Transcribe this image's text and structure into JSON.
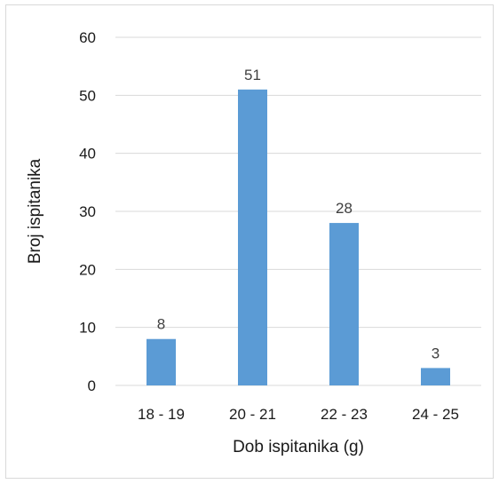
{
  "chart_data": {
    "type": "bar",
    "categories": [
      "18 - 19",
      "20 - 21",
      "22 - 23",
      "24 - 25"
    ],
    "values": [
      8,
      51,
      28,
      3
    ],
    "data_labels": [
      "8",
      "51",
      "28",
      "3"
    ],
    "title": "",
    "xlabel": "Dob ispitanika (g)",
    "ylabel": "Broj ispitanika",
    "ylim": [
      0,
      60
    ],
    "yticks": [
      "0",
      "10",
      "20",
      "30",
      "40",
      "50",
      "60"
    ],
    "grid": true,
    "legend": "none",
    "bar_color": "#5B9BD5",
    "grid_color": "#d9d9d9"
  }
}
